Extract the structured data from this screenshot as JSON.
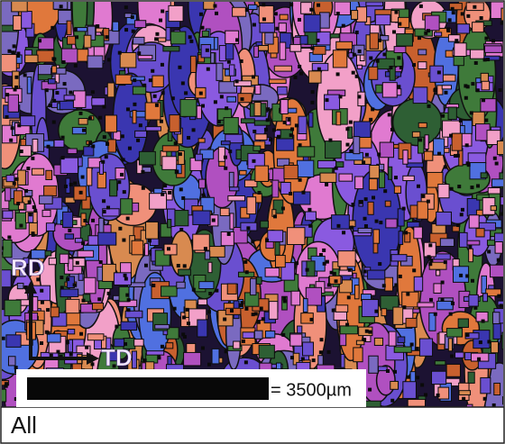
{
  "map": {
    "rd_label": "RD",
    "td_label": "TD",
    "scale_bar_label": "= 3500µm"
  },
  "footer": {
    "label": "All"
  }
}
